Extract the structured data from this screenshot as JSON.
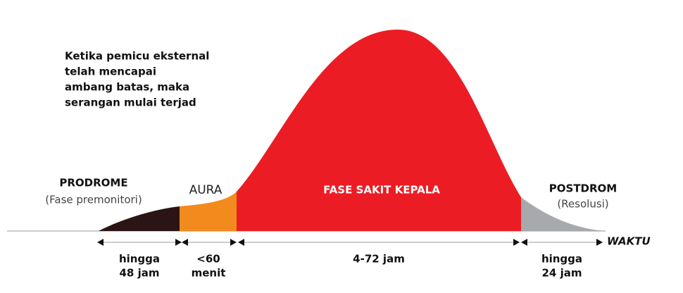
{
  "annotation": [
    "Ketika pemicu eksternal",
    "telah mencapai",
    "ambang batas, maka",
    "serangan mulai terjad"
  ],
  "phases": [
    {
      "name": "PRODROME",
      "subtitle": "(Fase premonitori)",
      "duration": [
        "hingga",
        "48 jam"
      ]
    },
    {
      "name": "AURA",
      "duration": [
        "<60",
        "menit"
      ]
    },
    {
      "name": "FASE SAKIT KEPALA",
      "duration": [
        "4-72 jam"
      ]
    },
    {
      "name": "POSTDROM",
      "subtitle": "(Resolusi)",
      "duration": [
        "hingga",
        "24 jam"
      ]
    }
  ],
  "axis_label": "WAKTU"
}
